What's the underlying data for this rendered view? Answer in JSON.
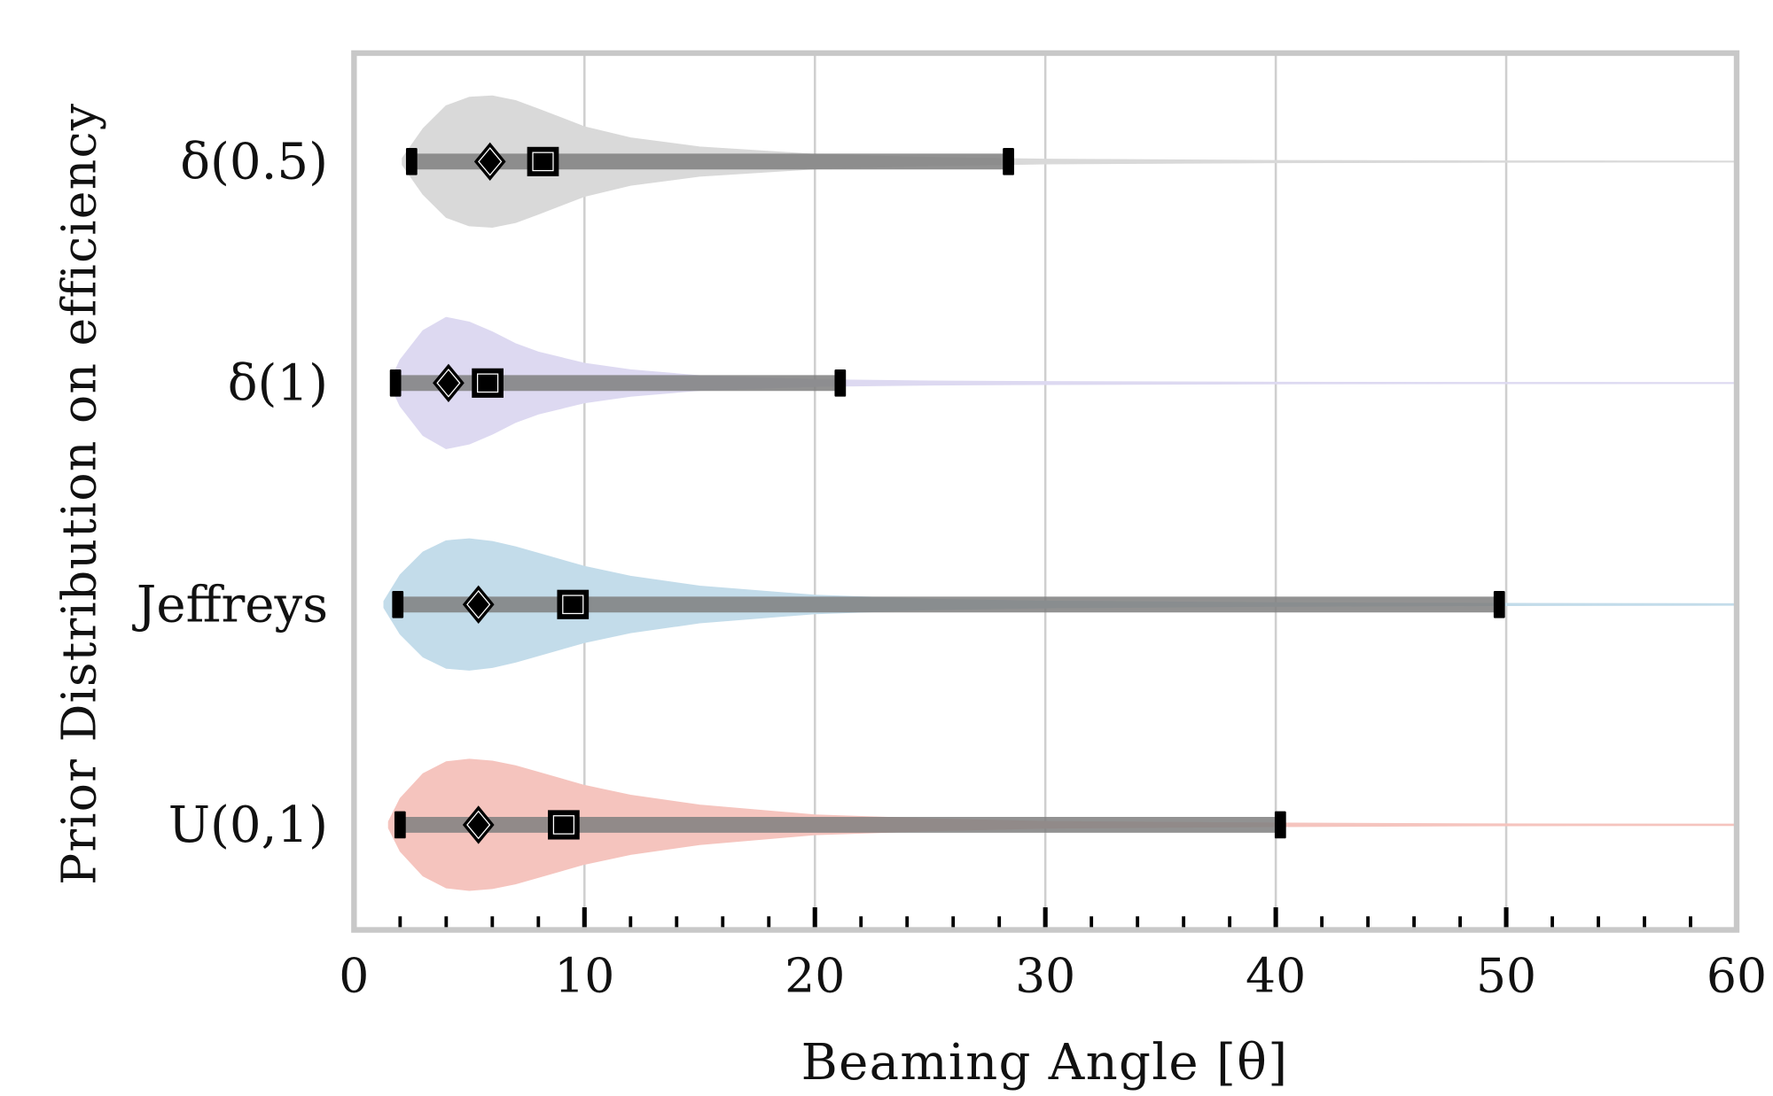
{
  "chart_data": {
    "type": "violin",
    "title": "",
    "xlabel": "Beaming Angle [θ]",
    "ylabel": "Prior Distribution on efficiency",
    "xlim": [
      0,
      60
    ],
    "xticks": [
      0,
      10,
      20,
      30,
      40,
      50,
      60
    ],
    "xtick_labels": [
      "0",
      "10",
      "20",
      "30",
      "40",
      "50",
      "60"
    ],
    "minor_tick_step": 2,
    "grid": "vertical",
    "interval_bar_color": "#808080",
    "marker_color": "#000000",
    "series": [
      {
        "name": "δ(0.5)",
        "color": "#d9d9d9",
        "interval_low": 2.5,
        "diamond": 5.9,
        "square": 8.2,
        "interval_high": 28.4,
        "violin_density": {
          "x": [
            2.1,
            3,
            4,
            5,
            6,
            7,
            8,
            10,
            12,
            15,
            20,
            25,
            30,
            40,
            50,
            60
          ],
          "density": [
            0.05,
            0.5,
            0.85,
            0.98,
            1.0,
            0.93,
            0.8,
            0.53,
            0.36,
            0.22,
            0.11,
            0.06,
            0.035,
            0.015,
            0.008,
            0.005
          ]
        }
      },
      {
        "name": "δ(1)",
        "color": "#ddd9f1",
        "interval_low": 1.8,
        "diamond": 4.1,
        "square": 5.8,
        "interval_high": 21.1,
        "violin_density": {
          "x": [
            1.6,
            2,
            3,
            4,
            5,
            6,
            7,
            8,
            10,
            12,
            15,
            20,
            25,
            30,
            40,
            60
          ],
          "density": [
            0.05,
            0.35,
            0.8,
            1.0,
            0.93,
            0.78,
            0.6,
            0.47,
            0.3,
            0.2,
            0.11,
            0.05,
            0.03,
            0.02,
            0.01,
            0.005
          ]
        }
      },
      {
        "name": "Jeffreys",
        "color": "#c3dcea",
        "interval_low": 1.9,
        "diamond": 5.4,
        "square": 9.5,
        "interval_high": 49.7,
        "violin_density": {
          "x": [
            1.3,
            2,
            3,
            4,
            5,
            6,
            7,
            8,
            10,
            12,
            15,
            20,
            25,
            30,
            40,
            50,
            60
          ],
          "density": [
            0.05,
            0.45,
            0.8,
            0.97,
            1.0,
            0.96,
            0.88,
            0.78,
            0.58,
            0.43,
            0.28,
            0.14,
            0.08,
            0.05,
            0.025,
            0.015,
            0.01
          ]
        }
      },
      {
        "name": "U(0,1)",
        "color": "#f5c4be",
        "interval_low": 2.0,
        "diamond": 5.4,
        "square": 9.1,
        "interval_high": 40.2,
        "violin_density": {
          "x": [
            1.5,
            2,
            3,
            4,
            5,
            6,
            7,
            8,
            10,
            12,
            15,
            20,
            25,
            30,
            40,
            50,
            60
          ],
          "density": [
            0.05,
            0.4,
            0.78,
            0.96,
            1.0,
            0.97,
            0.9,
            0.8,
            0.6,
            0.45,
            0.3,
            0.15,
            0.09,
            0.05,
            0.025,
            0.012,
            0.008
          ]
        }
      }
    ]
  }
}
